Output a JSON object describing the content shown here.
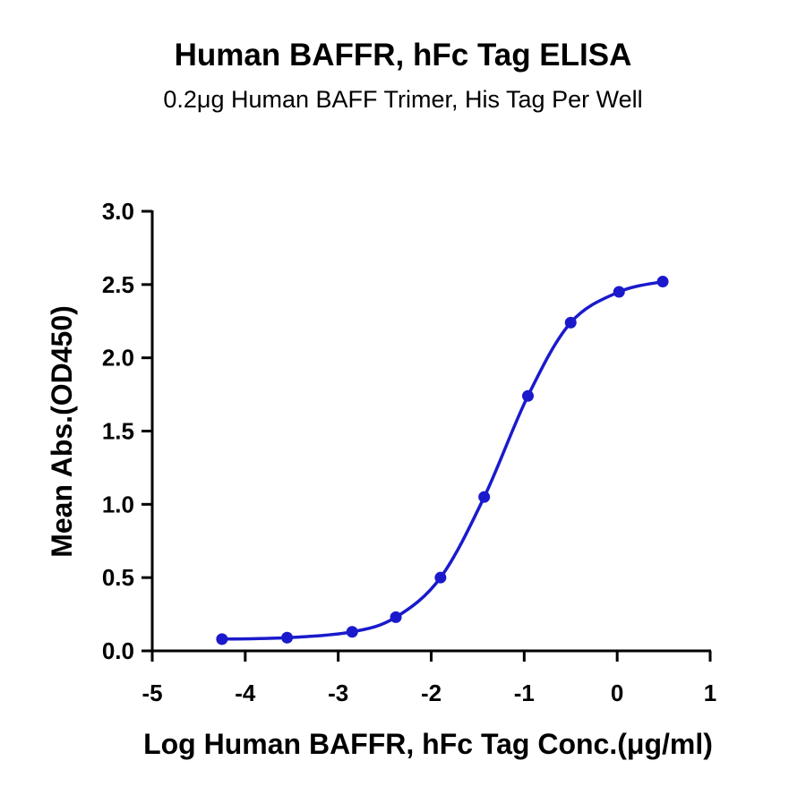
{
  "chart_data": {
    "type": "scatter",
    "title": "Human BAFFR, hFc Tag ELISA",
    "subtitle": "0.2μg Human BAFF Trimer, His Tag Per Well",
    "xlabel": "Log Human BAFFR, hFc Tag Conc.(μg/ml)",
    "ylabel": "Mean Abs.(OD450)",
    "xlim": [
      -5,
      1
    ],
    "ylim": [
      0,
      3
    ],
    "x_ticks": [
      "-5",
      "-4",
      "-3",
      "-2",
      "-1",
      "0",
      "1"
    ],
    "y_ticks": [
      "0.0",
      "0.5",
      "1.0",
      "1.5",
      "2.0",
      "2.5",
      "3.0"
    ],
    "grid": false,
    "color": "#1a1acc",
    "series": [
      {
        "x": [
          -4.25,
          -3.55,
          -2.85,
          -2.38,
          -1.9,
          -1.43,
          -0.96,
          -0.5,
          0.02,
          0.49
        ],
        "y": [
          0.08,
          0.09,
          0.13,
          0.23,
          0.5,
          1.05,
          1.74,
          2.24,
          2.45,
          2.52
        ],
        "fit": "sigmoidal curve"
      }
    ]
  }
}
